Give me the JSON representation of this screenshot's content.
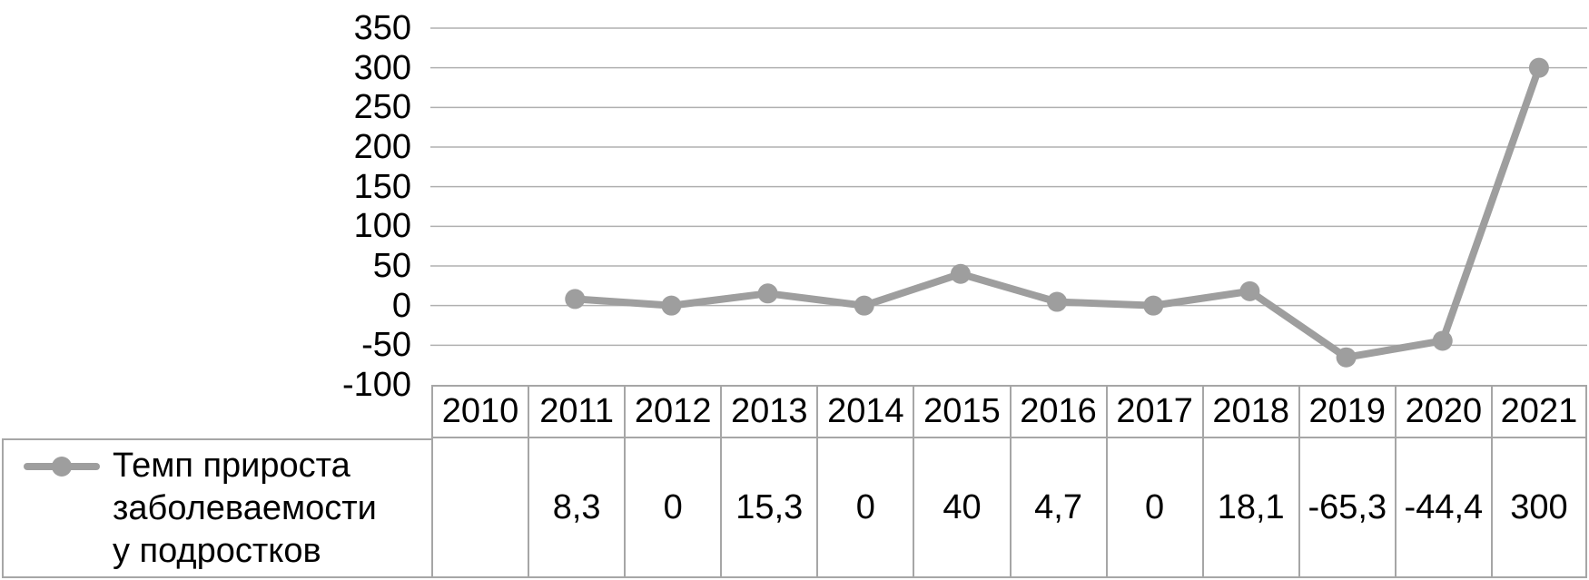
{
  "chart_data": {
    "type": "line",
    "title": "",
    "xlabel": "",
    "ylabel": "",
    "categories": [
      "2010",
      "2011",
      "2012",
      "2013",
      "2014",
      "2015",
      "2016",
      "2017",
      "2018",
      "2019",
      "2020",
      "2021"
    ],
    "series": [
      {
        "name": "Темп прироста заболеваемости у подростков",
        "values": [
          null,
          8.3,
          0,
          15.3,
          0,
          40,
          4.7,
          0,
          18.1,
          -65.3,
          -44.4,
          300
        ]
      }
    ],
    "ylim": [
      -100,
      350
    ],
    "yticks": [
      350,
      300,
      250,
      200,
      150,
      100,
      50,
      0,
      -50,
      -100
    ],
    "grid": true,
    "legend_position": "table-left",
    "marker": "circle"
  },
  "legend": {
    "label_lines": [
      "Темп прироста",
      "заболеваемости",
      "у подростков"
    ]
  },
  "table": {
    "years": [
      "2010",
      "2011",
      "2012",
      "2013",
      "2014",
      "2015",
      "2016",
      "2017",
      "2018",
      "2019",
      "2020",
      "2021"
    ],
    "values": [
      "",
      "8,3",
      "0",
      "15,3",
      "0",
      "40",
      "4,7",
      "0",
      "18,1",
      "-65,3",
      "-44,4",
      "300"
    ]
  },
  "colors": {
    "series": "#9e9e9e",
    "gridline": "#b0b0b0",
    "border": "#a6a6a6",
    "text": "#000000",
    "background": "#ffffff"
  }
}
